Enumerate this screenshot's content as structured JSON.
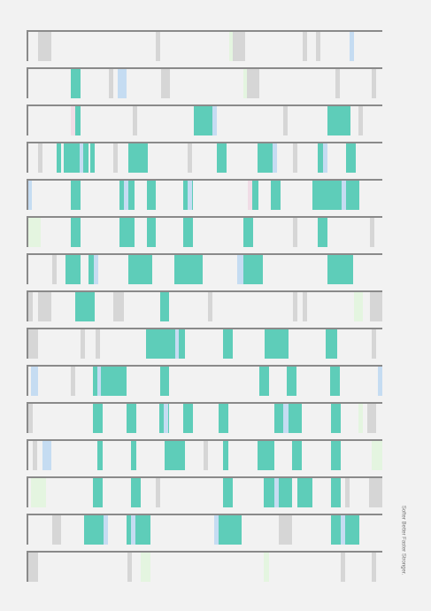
{
  "poster": {
    "caption": "Softer Better Faster Stronger."
  }
}
